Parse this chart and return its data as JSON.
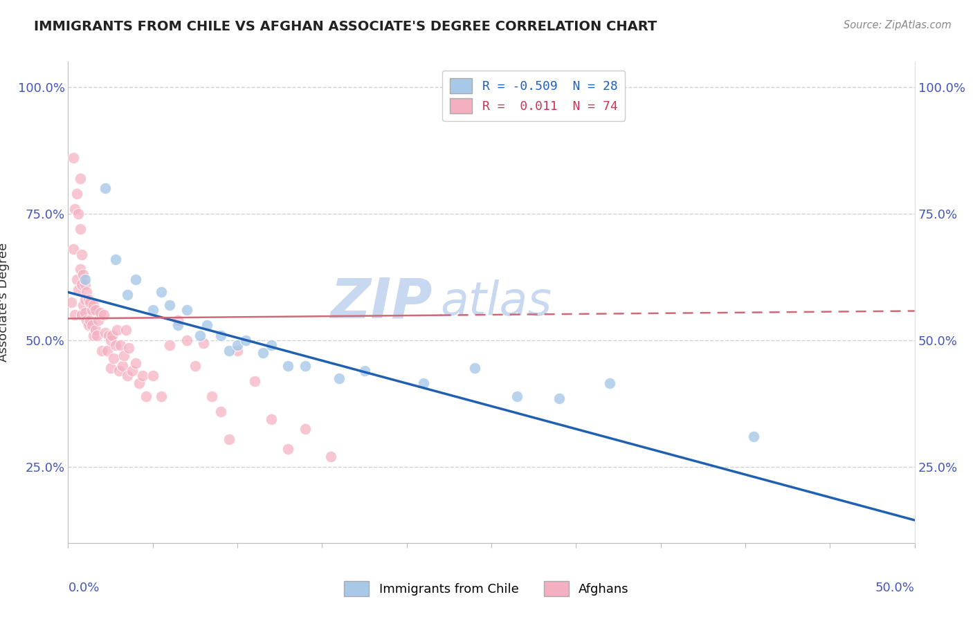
{
  "title": "IMMIGRANTS FROM CHILE VS AFGHAN ASSOCIATE'S DEGREE CORRELATION CHART",
  "source": "Source: ZipAtlas.com",
  "ylabel": "Associate's Degree",
  "xlim": [
    0.0,
    0.5
  ],
  "ylim": [
    0.1,
    1.05
  ],
  "yticks": [
    0.25,
    0.5,
    0.75,
    1.0
  ],
  "ytick_labels": [
    "25.0%",
    "50.0%",
    "75.0%",
    "100.0%"
  ],
  "blue_scatter_color": "#a8c8e8",
  "pink_scatter_color": "#f4b0c0",
  "blue_line_color": "#2060b0",
  "pink_line_color": "#d06878",
  "grid_color": "#cccccc",
  "title_color": "#222222",
  "axis_tick_color": "#4455bb",
  "ylabel_color": "#333333",
  "watermark_color": "#dde8f5",
  "source_color": "#888888",
  "legend_blue_text_color": "#2060c0",
  "legend_pink_text_color": "#cc3355",
  "blue_line_x0": 0.0,
  "blue_line_y0": 0.595,
  "blue_line_x1": 0.5,
  "blue_line_y1": 0.145,
  "pink_line_x0": 0.0,
  "pink_line_y0": 0.543,
  "pink_line_x1": 0.5,
  "pink_line_y1": 0.558,
  "chile_x": [
    0.01,
    0.022,
    0.028,
    0.035,
    0.04,
    0.05,
    0.055,
    0.06,
    0.065,
    0.07,
    0.078,
    0.082,
    0.09,
    0.095,
    0.1,
    0.105,
    0.115,
    0.12,
    0.13,
    0.14,
    0.16,
    0.175,
    0.21,
    0.24,
    0.265,
    0.29,
    0.32,
    0.405
  ],
  "chile_y": [
    0.62,
    0.8,
    0.66,
    0.59,
    0.62,
    0.56,
    0.595,
    0.57,
    0.53,
    0.56,
    0.51,
    0.53,
    0.51,
    0.48,
    0.49,
    0.5,
    0.475,
    0.49,
    0.45,
    0.45,
    0.425,
    0.44,
    0.415,
    0.445,
    0.39,
    0.385,
    0.415,
    0.31
  ],
  "afghan_x": [
    0.002,
    0.003,
    0.003,
    0.004,
    0.004,
    0.005,
    0.005,
    0.006,
    0.006,
    0.007,
    0.007,
    0.007,
    0.008,
    0.008,
    0.008,
    0.009,
    0.009,
    0.01,
    0.01,
    0.01,
    0.011,
    0.011,
    0.012,
    0.012,
    0.013,
    0.013,
    0.014,
    0.014,
    0.015,
    0.015,
    0.016,
    0.016,
    0.017,
    0.018,
    0.019,
    0.02,
    0.021,
    0.022,
    0.023,
    0.024,
    0.025,
    0.025,
    0.026,
    0.027,
    0.028,
    0.029,
    0.03,
    0.031,
    0.032,
    0.033,
    0.034,
    0.035,
    0.036,
    0.038,
    0.04,
    0.042,
    0.044,
    0.046,
    0.05,
    0.055,
    0.06,
    0.065,
    0.07,
    0.075,
    0.08,
    0.085,
    0.09,
    0.095,
    0.1,
    0.11,
    0.12,
    0.13,
    0.14,
    0.155
  ],
  "afghan_y": [
    0.575,
    0.86,
    0.68,
    0.76,
    0.55,
    0.62,
    0.79,
    0.75,
    0.6,
    0.72,
    0.64,
    0.82,
    0.67,
    0.61,
    0.55,
    0.63,
    0.57,
    0.61,
    0.555,
    0.58,
    0.595,
    0.54,
    0.58,
    0.53,
    0.575,
    0.54,
    0.53,
    0.56,
    0.57,
    0.51,
    0.56,
    0.52,
    0.51,
    0.54,
    0.555,
    0.48,
    0.55,
    0.515,
    0.48,
    0.51,
    0.445,
    0.5,
    0.51,
    0.465,
    0.49,
    0.52,
    0.44,
    0.49,
    0.45,
    0.47,
    0.52,
    0.43,
    0.485,
    0.44,
    0.455,
    0.415,
    0.43,
    0.39,
    0.43,
    0.39,
    0.49,
    0.54,
    0.5,
    0.45,
    0.495,
    0.39,
    0.36,
    0.305,
    0.48,
    0.42,
    0.345,
    0.285,
    0.325,
    0.27
  ]
}
